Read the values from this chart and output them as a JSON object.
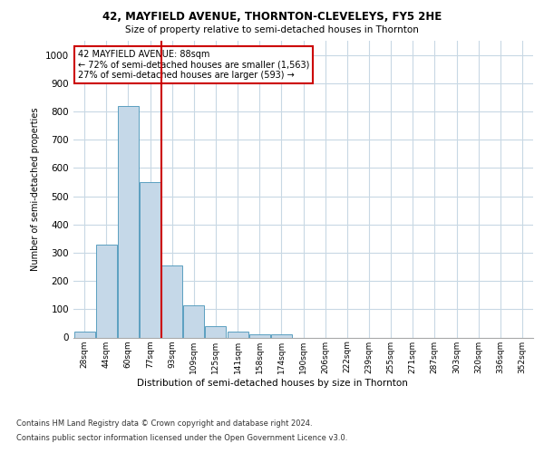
{
  "title1": "42, MAYFIELD AVENUE, THORNTON-CLEVELEYS, FY5 2HE",
  "title2": "Size of property relative to semi-detached houses in Thornton",
  "xlabel": "Distribution of semi-detached houses by size in Thornton",
  "ylabel": "Number of semi-detached properties",
  "bin_labels": [
    "28sqm",
    "44sqm",
    "60sqm",
    "77sqm",
    "93sqm",
    "109sqm",
    "125sqm",
    "141sqm",
    "158sqm",
    "174sqm",
    "190sqm",
    "206sqm",
    "222sqm",
    "239sqm",
    "255sqm",
    "271sqm",
    "287sqm",
    "303sqm",
    "320sqm",
    "336sqm",
    "352sqm"
  ],
  "bar_values": [
    20,
    330,
    820,
    550,
    255,
    115,
    40,
    20,
    10,
    10,
    0,
    0,
    0,
    0,
    0,
    0,
    0,
    0,
    0,
    0,
    0
  ],
  "bar_color": "#c5d8e8",
  "bar_edge_color": "#5a9fc0",
  "vline_x": 3.5,
  "vline_color": "#cc0000",
  "annotation_text": "42 MAYFIELD AVENUE: 88sqm\n← 72% of semi-detached houses are smaller (1,563)\n27% of semi-detached houses are larger (593) →",
  "annotation_box_color": "#ffffff",
  "annotation_box_edge": "#cc0000",
  "ylim": [
    0,
    1050
  ],
  "yticks": [
    0,
    100,
    200,
    300,
    400,
    500,
    600,
    700,
    800,
    900,
    1000
  ],
  "footnote1": "Contains HM Land Registry data © Crown copyright and database right 2024.",
  "footnote2": "Contains public sector information licensed under the Open Government Licence v3.0.",
  "background_color": "#ffffff",
  "grid_color": "#c8d8e4"
}
